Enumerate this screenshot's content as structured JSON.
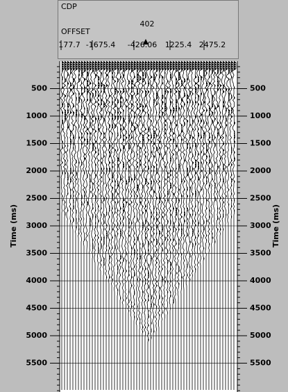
{
  "header": {
    "cdp_label": "CDP",
    "cdp_value": "402",
    "offset_label": "OFFSET",
    "offset_ticks": [
      "177.7",
      "-1675.4",
      "-426.06",
      "1225.4",
      "2475.2"
    ]
  },
  "time_axis": {
    "label": "Time (ms)",
    "range": [
      0,
      6025
    ],
    "ticks": [
      500,
      1000,
      1500,
      2000,
      2500,
      3000,
      3500,
      4000,
      4500,
      5000,
      5500
    ]
  }
}
